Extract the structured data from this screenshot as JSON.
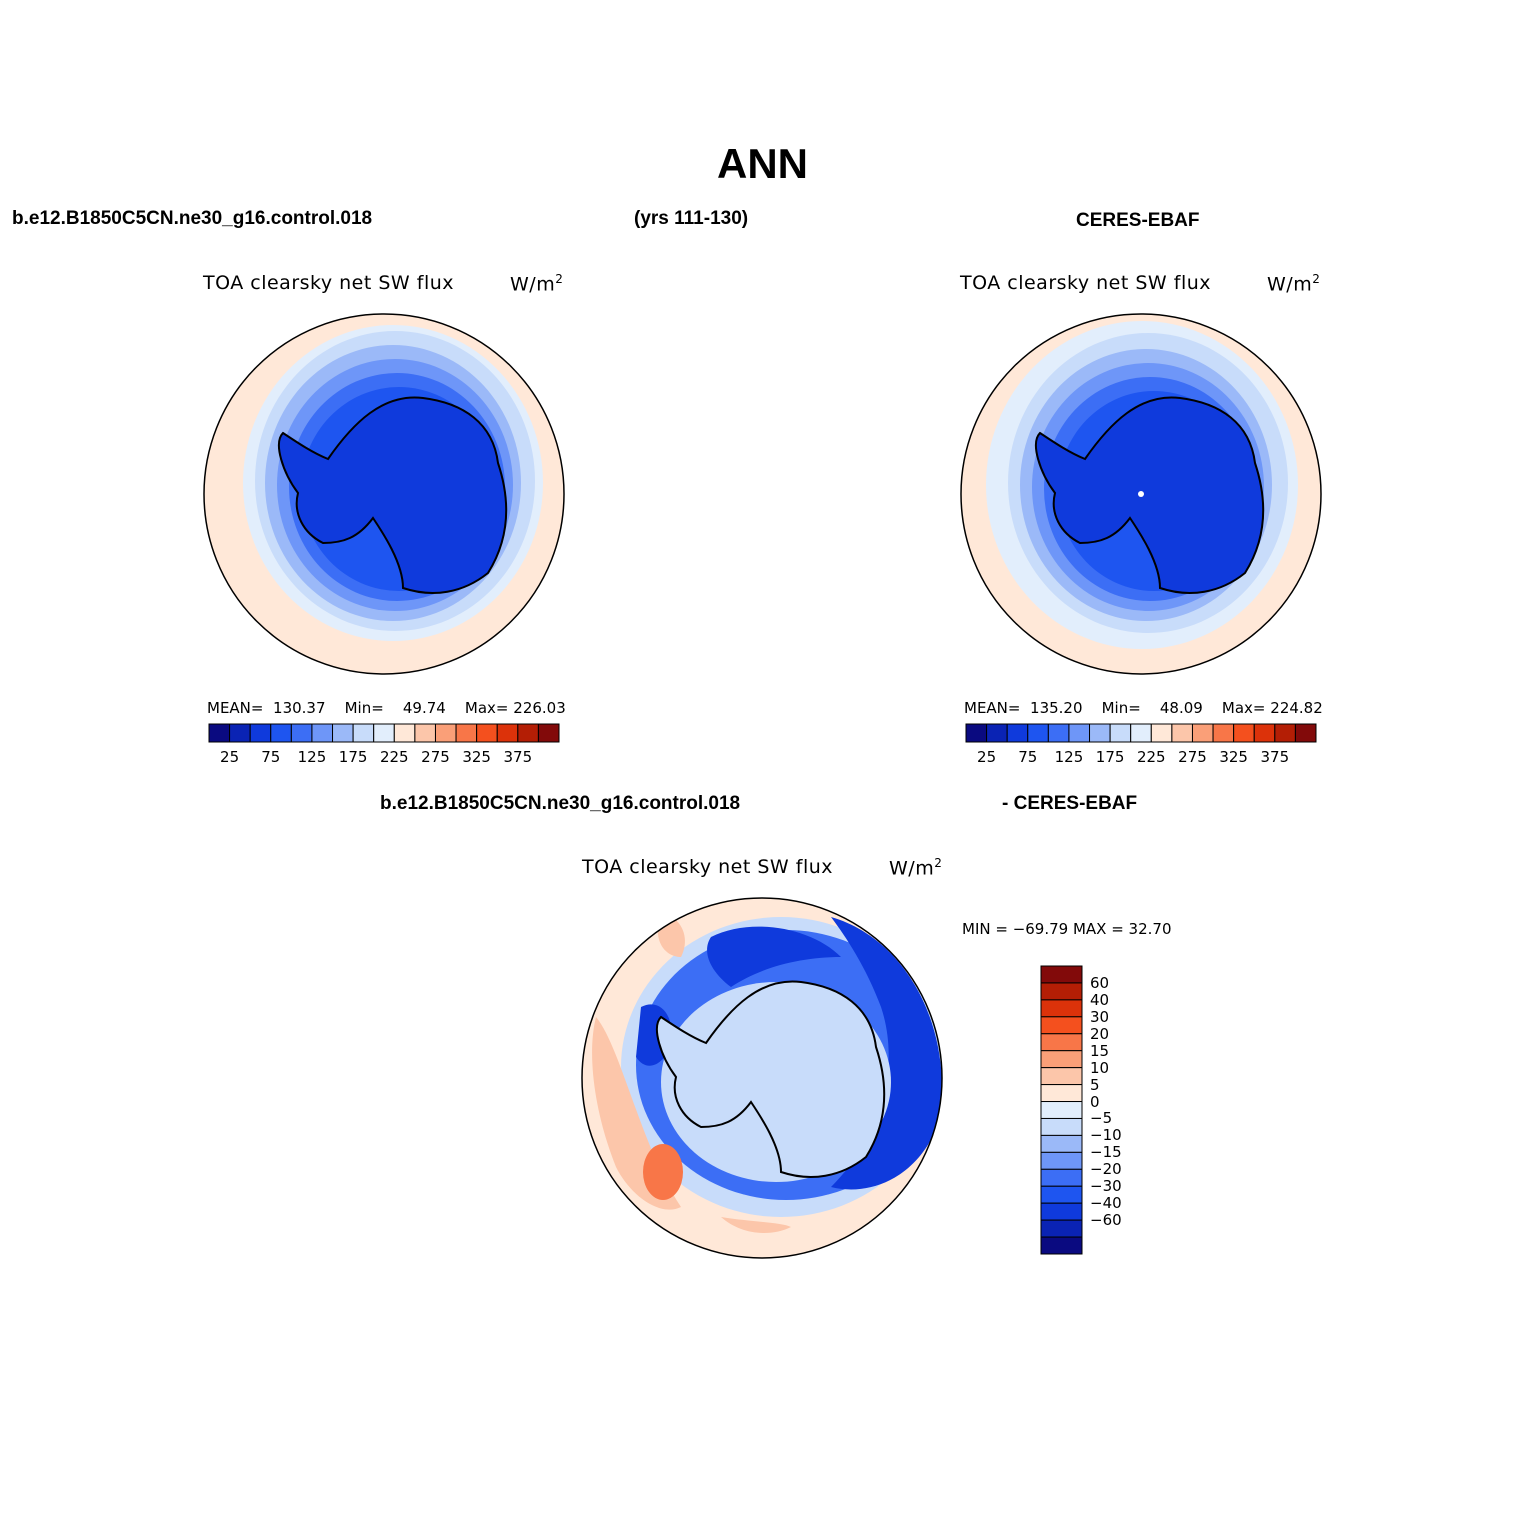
{
  "title": "ANN",
  "top_left_case": "b.e12.B1850C5CN.ne30_g16.control.018",
  "top_years": "(yrs 111-130)",
  "top_right_case": "CERES-EBAF",
  "bottom_case": "b.e12.B1850C5CN.ne30_g16.control.018",
  "bottom_minus": "- CERES-EBAF",
  "panels": {
    "model": {
      "var_title": "TOA clearsky net SW flux",
      "units_base": "W/m",
      "units_sup": "2",
      "stats": {
        "mean_label": "MEAN=",
        "mean": "130.37",
        "min_label": "Min=",
        "min": "49.74",
        "max_label": "Max=",
        "max": "226.03"
      }
    },
    "obs": {
      "var_title": "TOA clearsky net SW flux",
      "units_base": "W/m",
      "units_sup": "2",
      "stats": {
        "mean_label": "MEAN=",
        "mean": "135.20",
        "min_label": "Min=",
        "min": "48.09",
        "max_label": "Max=",
        "max": "224.82"
      }
    },
    "diff": {
      "var_title": "TOA clearsky net SW flux",
      "units_base": "W/m",
      "units_sup": "2",
      "stats_text": "MIN = −69.79 MAX =   32.70"
    }
  },
  "abs_colorbar": {
    "colors": [
      "#0a0a80",
      "#0a23b4",
      "#0f3adc",
      "#1e55f0",
      "#3c6ef5",
      "#6e96f8",
      "#9bb9f8",
      "#c8dcfa",
      "#e2eefc",
      "#ffe8d8",
      "#fcc6aa",
      "#fa9f78",
      "#f87648",
      "#f4501e",
      "#dc320a",
      "#b41e05",
      "#820a0a"
    ],
    "tick_labels": [
      "25",
      "75",
      "125",
      "175",
      "225",
      "275",
      "325",
      "375"
    ]
  },
  "diff_colorbar": {
    "colors": [
      "#820a0a",
      "#b41e05",
      "#dc320a",
      "#f4501e",
      "#f87648",
      "#fa9f78",
      "#fcc6aa",
      "#ffe8d8",
      "#e2eefc",
      "#c8dcfa",
      "#9bb9f8",
      "#6e96f8",
      "#3c6ef5",
      "#1e55f0",
      "#0f3adc",
      "#0a23b4",
      "#0a0a80"
    ],
    "tick_labels": [
      "60",
      "40",
      "30",
      "20",
      "15",
      "10",
      "5",
      "0",
      "−5",
      "−10",
      "−15",
      "−20",
      "−30",
      "−40",
      "−60"
    ]
  },
  "map_colors": {
    "outer": "#ffe8d8",
    "ring1": "#e2eefc",
    "ring2": "#c8dcfa",
    "ring3": "#9bb9f8",
    "ring4": "#6e96f8",
    "ring5": "#3c6ef5",
    "ring6": "#1e55f0",
    "continent": "#0f3adc",
    "diff_base": "#ffe8d8",
    "diff_pos": "#fcc6aa",
    "diff_posstrong": "#f87648",
    "diff_neg_light": "#c8dcfa",
    "diff_neg_mid": "#3c6ef5",
    "diff_neg_strong": "#0f3adc"
  }
}
